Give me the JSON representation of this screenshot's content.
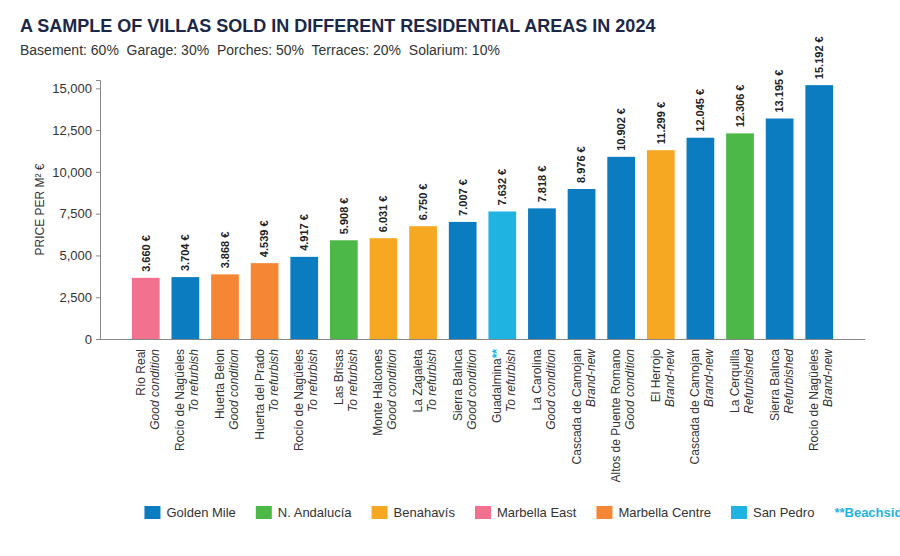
{
  "chart_data": {
    "type": "bar",
    "title": "A SAMPLE OF VILLAS SOLD IN DIFFERENT RESIDENTIAL AREAS IN 2024",
    "subtitle": "Basement: 60%  Garage: 30%  Porches: 50%  Terraces: 20%  Solarium: 10%",
    "y_label": "PRICE PER M² €",
    "categories": [
      "Río Real",
      "Rocío de Nagüeles",
      "Huerta Belon",
      "Huerta del Prado",
      "Rocío de Nagüeles",
      "Las Brisas",
      "Monte Halcones",
      "La Zagaleta",
      "Sierra Balnca",
      "Guadalmina**",
      "La Carolina",
      "Cascada de Camojan",
      "Altos de Puente Romano",
      "El Herrojo",
      "Cascada de Camojan",
      "La Cerquilla",
      "Sierra Balnca",
      "Rocío de Nagüeles"
    ],
    "conditions": [
      "Good condition",
      "To refurbish",
      "Good condition",
      "To refurbish",
      "To refurbish",
      "To refurbish",
      "Good condition",
      "To refurbish",
      "Good condition",
      "To refurbish",
      "Good condition",
      "Brand-new",
      "Good condition",
      "Brand-new",
      "Brand-new",
      "Refurbished",
      "Refurbished",
      "Brand-new"
    ],
    "values": [
      3660,
      3704,
      3868,
      4539,
      4917,
      5908,
      6031,
      6750,
      7007,
      7632,
      7818,
      8976,
      10902,
      11299,
      12045,
      12306,
      13195,
      15192
    ],
    "value_labels": [
      "3.660 €",
      "3.704 €",
      "3.868 €",
      "4.539 €",
      "4.917 €",
      "5.908 €",
      "6.031 €",
      "6.750 €",
      "7.007 €",
      "7.632 €",
      "7.818 €",
      "8.976 €",
      "10.902 €",
      "11.299 €",
      "12.045 €",
      "12.306 €",
      "13.195 €",
      "15.192 €"
    ],
    "colors": [
      "#f2718f",
      "#0b7cbf",
      "#f58634",
      "#f58634",
      "#0b7cbf",
      "#4cb848",
      "#f7a823",
      "#f7a823",
      "#0b7cbf",
      "#1fb3e2",
      "#0b7cbf",
      "#0b7cbf",
      "#0b7cbf",
      "#f7a823",
      "#0b7cbf",
      "#4cb848",
      "#0b7cbf",
      "#0b7cbf"
    ],
    "ylim": [
      0,
      15500
    ],
    "yticks": [
      {
        "value": 0,
        "label": "0"
      },
      {
        "value": 2500,
        "label": "2,500"
      },
      {
        "value": 5000,
        "label": "5,000"
      },
      {
        "value": 7500,
        "label": "7,500"
      },
      {
        "value": 10000,
        "label": "10,000"
      },
      {
        "value": 12500,
        "label": "12,500"
      },
      {
        "value": 15000,
        "label": "15,000"
      }
    ],
    "grid": false,
    "data_labels": true,
    "legend": "bottom",
    "legend_entries": [
      {
        "name": "Golden Mile",
        "color": "#0b7cbf"
      },
      {
        "name": "N. Andalucía",
        "color": "#4cb848"
      },
      {
        "name": "Benahavís",
        "color": "#f7a823"
      },
      {
        "name": "Marbella East",
        "color": "#f2718f"
      },
      {
        "name": "Marbella Centre",
        "color": "#f58634"
      },
      {
        "name": "San Pedro",
        "color": "#1fb3e2"
      }
    ],
    "legend_note": {
      "text": "**Beachside",
      "color": "#1fb3e2"
    }
  }
}
